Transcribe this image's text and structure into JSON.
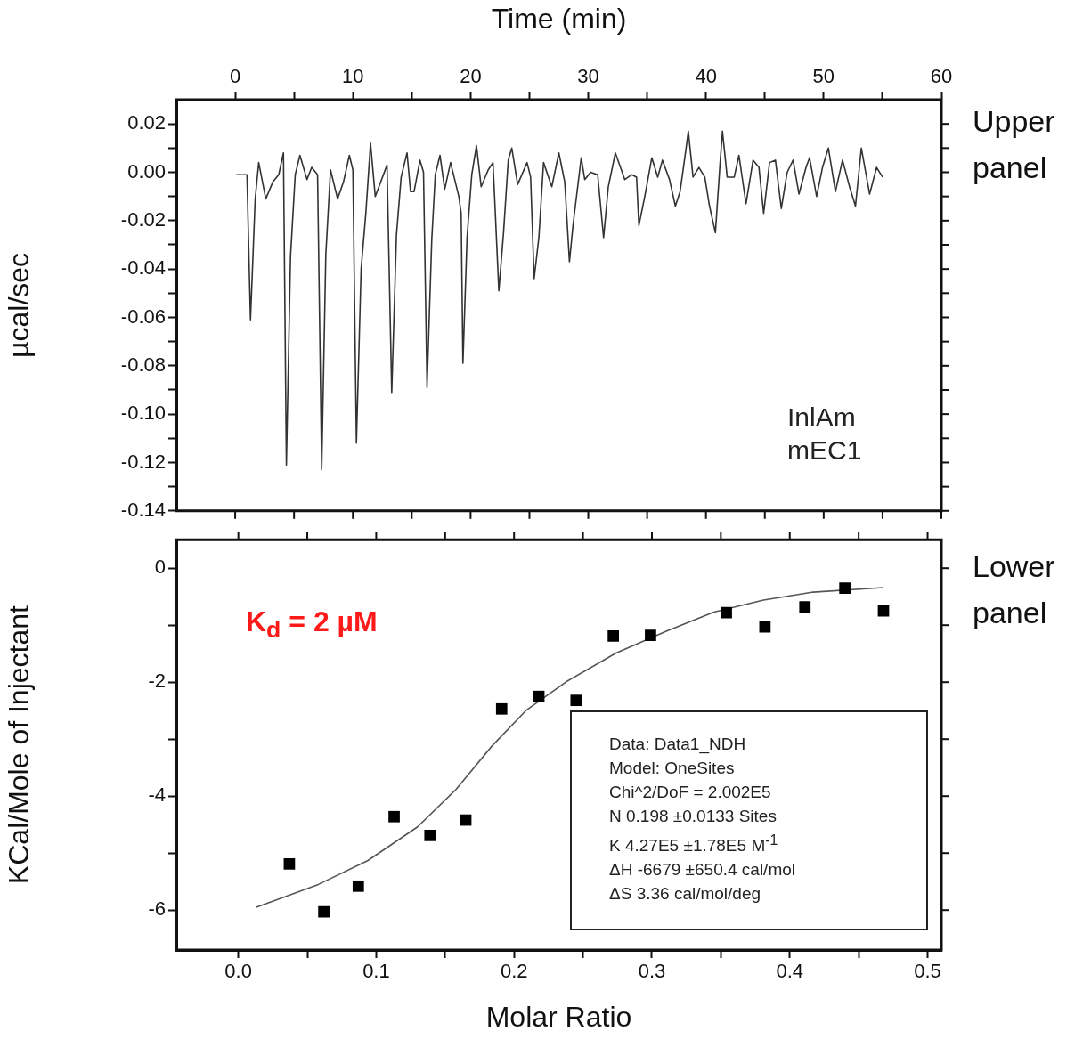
{
  "chart_data": [
    {
      "type": "line",
      "xlabel": "Time (min)",
      "ylabel": "µcal/sec",
      "xlim": [
        -5,
        60
      ],
      "xticks": [
        0,
        {
          "value": 5,
          "label": null
        },
        10,
        {
          "value": 15,
          "label": null
        },
        20,
        {
          "value": 25,
          "label": null
        },
        30,
        {
          "value": 35,
          "label": null
        },
        40,
        {
          "value": 45,
          "label": null
        },
        50,
        {
          "value": 55,
          "label": null
        },
        60
      ],
      "ylim": [
        -0.14,
        0.03
      ],
      "yticks": [
        {
          "value": -0.14,
          "label": "-0.14"
        },
        {
          "value": -0.13,
          "label": null
        },
        {
          "value": -0.12,
          "label": "-0.12"
        },
        {
          "value": -0.11,
          "label": null
        },
        {
          "value": -0.1,
          "label": "-0.10"
        },
        {
          "value": -0.09,
          "label": null
        },
        {
          "value": -0.08,
          "label": "-0.08"
        },
        {
          "value": -0.07,
          "label": null
        },
        {
          "value": -0.06,
          "label": "-0.06"
        },
        {
          "value": -0.05,
          "label": null
        },
        {
          "value": -0.04,
          "label": "-0.04"
        },
        {
          "value": -0.03,
          "label": null
        },
        {
          "value": -0.02,
          "label": "-0.02"
        },
        {
          "value": -0.01,
          "label": null
        },
        {
          "value": 0,
          "label": "0.00"
        },
        {
          "value": 0.01,
          "label": null
        },
        {
          "value": 0.02,
          "label": "0.02"
        }
      ],
      "marker": "none",
      "line_style": "solid",
      "series": [
        {
          "color": "#333333",
          "x": [
            0.1,
            1.0,
            1.3,
            1.7,
            2.0,
            2.6,
            3.2,
            3.7,
            4.1,
            4.35,
            4.7,
            5.1,
            5.5,
            6.1,
            6.5,
            7.0,
            7.35,
            7.7,
            8.1,
            8.7,
            9.2,
            9.7,
            10.0,
            10.3,
            10.7,
            11.1,
            11.5,
            11.9,
            12.9,
            13.3,
            13.7,
            14.1,
            14.6,
            14.9,
            15.2,
            15.7,
            16.0,
            16.3,
            16.7,
            17.0,
            17.4,
            17.8,
            18.3,
            19.0,
            19.2,
            19.35,
            19.7,
            20.1,
            20.5,
            20.9,
            21.5,
            21.9,
            22.0,
            22.4,
            22.8,
            23.2,
            23.5,
            24.0,
            24.8,
            25.1,
            25.4,
            25.8,
            26.2,
            26.9,
            27.5,
            28.0,
            28.4,
            28.7,
            29.4,
            29.7,
            30.2,
            30.8,
            31.3,
            31.7,
            32.3,
            33.1,
            33.7,
            34.1,
            34.3,
            34.8,
            35.4,
            35.9,
            36.3,
            36.9,
            37.4,
            37.8,
            38.2,
            38.5,
            38.9,
            39.4,
            39.9,
            40.3,
            40.8,
            41.2,
            41.4,
            41.8,
            42.4,
            42.8,
            43.4,
            44.0,
            44.5,
            44.9,
            45.4,
            45.9,
            46.4,
            46.9,
            47.4,
            47.9,
            48.5,
            48.8,
            49.4,
            49.9,
            50.4,
            51.0,
            51.6,
            52.2,
            52.7,
            53.2,
            53.9,
            54.5,
            55.0
          ],
          "values": [
            -0.001,
            -0.001,
            -0.061,
            -0.011,
            0.004,
            -0.011,
            -0.004,
            -0.001,
            0.008,
            -0.121,
            -0.035,
            -0.001,
            0.007,
            -0.003,
            0.002,
            -0.001,
            -0.123,
            -0.034,
            0.001,
            -0.011,
            -0.004,
            0.007,
            0.001,
            -0.112,
            -0.04,
            -0.017,
            0.012,
            -0.01,
            0.003,
            -0.091,
            -0.026,
            -0.002,
            0.008,
            -0.008,
            -0.008,
            0.005,
            0.0,
            -0.089,
            -0.028,
            -0.001,
            0.007,
            -0.007,
            0.004,
            -0.01,
            -0.017,
            -0.079,
            -0.027,
            -0.001,
            0.011,
            -0.006,
            0.001,
            0.004,
            -0.006,
            -0.049,
            -0.025,
            0.005,
            0.01,
            -0.005,
            0.004,
            -0.002,
            -0.044,
            -0.027,
            0.004,
            -0.006,
            0.008,
            -0.004,
            -0.037,
            -0.022,
            0.006,
            -0.003,
            0.0,
            -0.001,
            -0.027,
            -0.006,
            0.008,
            -0.003,
            -0.001,
            -0.002,
            -0.022,
            -0.01,
            0.006,
            -0.002,
            0.005,
            -0.003,
            -0.014,
            -0.008,
            0.006,
            0.017,
            -0.002,
            0.002,
            -0.002,
            -0.014,
            -0.025,
            0.004,
            0.017,
            -0.002,
            -0.002,
            0.007,
            -0.013,
            0.005,
            0.002,
            -0.017,
            0.004,
            0.005,
            -0.015,
            0.0,
            0.005,
            -0.009,
            0.002,
            0.006,
            -0.01,
            0.002,
            0.01,
            -0.008,
            0.005,
            -0.006,
            -0.014,
            0.01,
            -0.009,
            0.002,
            -0.002
          ]
        }
      ],
      "annotations": [
        "InlAm",
        "mEC1",
        "Upper panel"
      ]
    },
    {
      "type": "scatter",
      "xlabel": "Molar Ratio",
      "ylabel": "KCal/Mole of Injectant",
      "xlim": [
        -0.045,
        0.51
      ],
      "xticks": [
        {
          "value": 0,
          "label": "0.0"
        },
        {
          "value": 0.05,
          "label": null
        },
        {
          "value": 0.1,
          "label": "0.1"
        },
        {
          "value": 0.15,
          "label": null
        },
        {
          "value": 0.2,
          "label": "0.2"
        },
        {
          "value": 0.25,
          "label": null
        },
        {
          "value": 0.3,
          "label": "0.3"
        },
        {
          "value": 0.35,
          "label": null
        },
        {
          "value": 0.4,
          "label": "0.4"
        },
        {
          "value": 0.45,
          "label": null
        },
        {
          "value": 0.5,
          "label": "0.5"
        }
      ],
      "ylim": [
        -6.7,
        0.5
      ],
      "yticks": [
        -6,
        {
          "value": -5,
          "label": null
        },
        -4,
        {
          "value": -3,
          "label": null
        },
        -2,
        {
          "value": -1,
          "label": null
        },
        0
      ],
      "series": [
        {
          "marker": "square",
          "color": "#000000",
          "x": [
            0.037,
            0.062,
            0.087,
            0.113,
            0.139,
            0.165,
            0.191,
            0.218,
            0.245,
            0.272,
            0.299,
            0.354,
            0.382,
            0.411,
            0.44,
            0.468
          ],
          "values": [
            -5.19,
            -6.03,
            -5.58,
            -4.36,
            -4.69,
            -4.42,
            -2.47,
            -2.25,
            -2.32,
            -1.19,
            -1.18,
            -0.78,
            -1.03,
            -0.68,
            -0.35,
            -0.75
          ]
        },
        {
          "type": "line",
          "marker": "none",
          "line_style": "solid",
          "color": "#555555",
          "x": [
            0.013,
            0.058,
            0.094,
            0.13,
            0.158,
            0.184,
            0.209,
            0.238,
            0.274,
            0.31,
            0.345,
            0.381,
            0.417,
            0.468
          ],
          "values": [
            -5.95,
            -5.55,
            -5.13,
            -4.54,
            -3.88,
            -3.12,
            -2.49,
            -1.99,
            -1.49,
            -1.11,
            -0.77,
            -0.56,
            -0.42,
            -0.34
          ]
        }
      ],
      "annotations": [
        "K$_{d}$ = 2 µM",
        "Data: Data1_NDH",
        "Model: OneSites",
        "Chi^2/DoF = 2.002E5",
        "N 0.198 ±0.0133 Sites",
        "K 4.27E5 ±1.78E5 M$^{-1}$",
        "ΔH -6679 ±650.4 cal/mol",
        "ΔS 3.36 cal/mol/deg",
        "Lower panel"
      ]
    }
  ]
}
